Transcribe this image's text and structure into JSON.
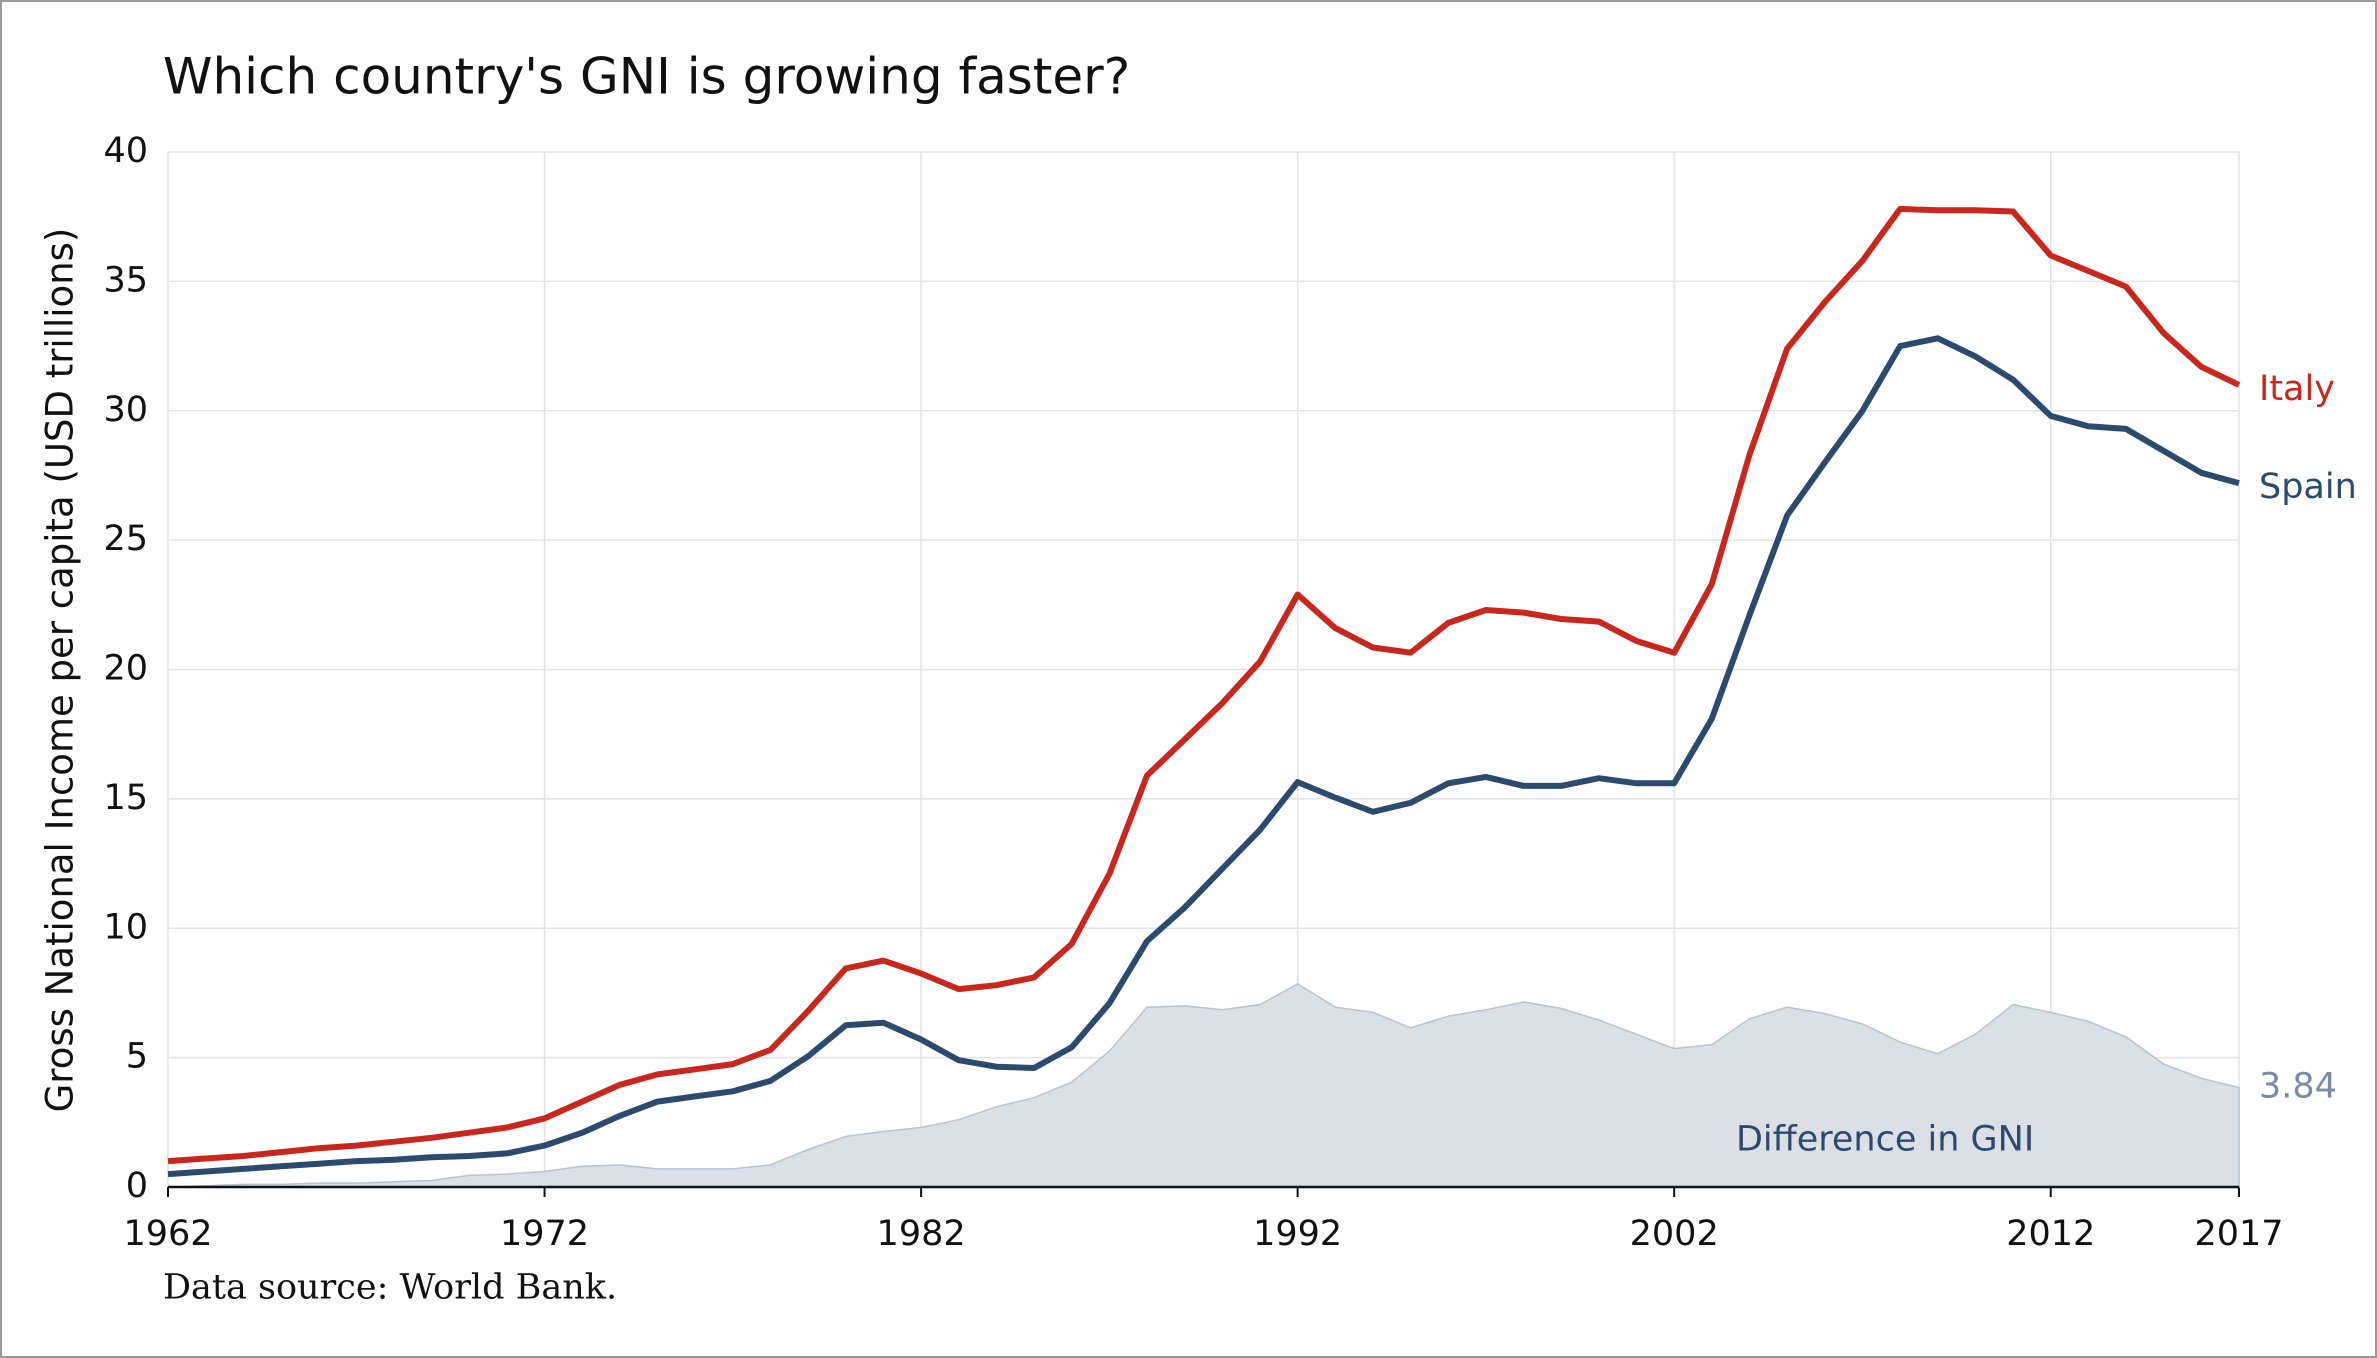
{
  "chart_data": {
    "type": "line",
    "title": "Which country's GNI is growing faster?",
    "ylabel": "Gross National Income per capita (USD trillions)",
    "source": "Data source: World Bank.",
    "x": [
      1962,
      1963,
      1964,
      1965,
      1966,
      1967,
      1968,
      1969,
      1970,
      1971,
      1972,
      1973,
      1974,
      1975,
      1976,
      1977,
      1978,
      1979,
      1980,
      1981,
      1982,
      1983,
      1984,
      1985,
      1986,
      1987,
      1988,
      1989,
      1990,
      1991,
      1992,
      1993,
      1994,
      1995,
      1996,
      1997,
      1998,
      1999,
      2000,
      2001,
      2002,
      2003,
      2004,
      2005,
      2006,
      2007,
      2008,
      2009,
      2010,
      2011,
      2012,
      2013,
      2014,
      2015,
      2016,
      2017
    ],
    "series": [
      {
        "name": "Difference in GNI",
        "kind": "area",
        "color": "#dbe0e7",
        "label_color": "#2b4a6e",
        "end_color": "#7a8ca3",
        "values": [
          0,
          0.05,
          0.1,
          0.1,
          0.15,
          0.15,
          0.2,
          0.25,
          0.45,
          0.5,
          0.6,
          0.8,
          0.85,
          0.7,
          0.7,
          0.7,
          0.85,
          1.45,
          1.95,
          2.15,
          2.3,
          2.6,
          3.1,
          3.45,
          4.05,
          5.25,
          6.95,
          7.0,
          6.85,
          7.05,
          7.85,
          6.95,
          6.75,
          6.15,
          6.6,
          6.85,
          7.15,
          6.9,
          6.45,
          5.9,
          5.35,
          5.5,
          6.5,
          6.95,
          6.7,
          6.3,
          5.6,
          5.15,
          5.9,
          7.05,
          6.75,
          6.4,
          5.8,
          4.75,
          4.2,
          3.84
        ]
      },
      {
        "name": "Italy",
        "kind": "line",
        "color": "#c9271e",
        "values": [
          1.0,
          1.1,
          1.2,
          1.35,
          1.5,
          1.6,
          1.75,
          1.9,
          2.1,
          2.3,
          2.65,
          3.3,
          3.95,
          4.35,
          4.55,
          4.75,
          5.3,
          6.8,
          8.45,
          8.75,
          8.25,
          7.65,
          7.8,
          8.1,
          9.4,
          12.1,
          15.9,
          17.3,
          18.7,
          20.3,
          22.9,
          21.6,
          20.85,
          20.65,
          21.8,
          22.3,
          22.2,
          21.95,
          21.85,
          21.1,
          20.65,
          23.3,
          28.3,
          32.4,
          34.2,
          35.8,
          37.8,
          37.75,
          37.75,
          37.7,
          36.0,
          35.4,
          34.8,
          33.0,
          31.7,
          31.0
        ]
      },
      {
        "name": "Spain",
        "kind": "line",
        "color": "#2b4a6e",
        "values": [
          0.5,
          0.6,
          0.7,
          0.8,
          0.9,
          1.0,
          1.05,
          1.15,
          1.2,
          1.3,
          1.6,
          2.1,
          2.75,
          3.3,
          3.5,
          3.7,
          4.1,
          5.05,
          6.25,
          6.35,
          5.7,
          4.9,
          4.65,
          4.6,
          5.4,
          7.1,
          9.5,
          10.8,
          12.3,
          13.8,
          15.65,
          15.05,
          14.5,
          14.85,
          15.6,
          15.85,
          15.5,
          15.5,
          15.8,
          15.6,
          15.6,
          18.1,
          22.1,
          25.95,
          28.0,
          30.0,
          32.5,
          32.8,
          32.1,
          31.2,
          29.8,
          29.4,
          29.3,
          28.45,
          27.6,
          27.2
        ]
      }
    ],
    "xlim": [
      1962,
      2017
    ],
    "xticks": [
      1962,
      1972,
      1982,
      1992,
      2002,
      2012,
      2017
    ],
    "ylim": [
      0,
      40
    ],
    "yticks": [
      0,
      5,
      10,
      15,
      20,
      25,
      30,
      35,
      40
    ],
    "grid": true
  }
}
